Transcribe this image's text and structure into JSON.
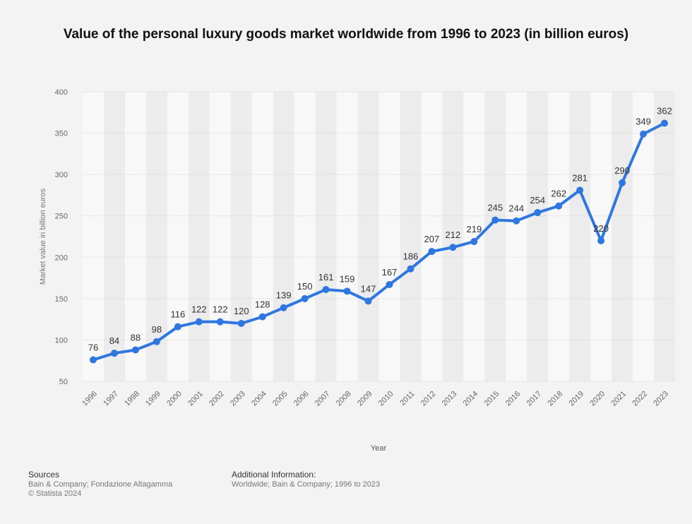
{
  "chart_data": {
    "type": "line",
    "title": "Value of the personal luxury goods market worldwide from 1996 to 2023 (in billion euros)",
    "xlabel": "Year",
    "ylabel": "Market value in billion euros",
    "categories": [
      "1996",
      "1997",
      "1998",
      "1999",
      "2000",
      "2001",
      "2002",
      "2003",
      "2004",
      "2005",
      "2006",
      "2007",
      "2008",
      "2009",
      "2010",
      "2011",
      "2012",
      "2013",
      "2014",
      "2015",
      "2016",
      "2017",
      "2018",
      "2019",
      "2020",
      "2021",
      "2022",
      "2023"
    ],
    "series": [
      {
        "values": [
          76,
          84,
          88,
          98,
          116,
          122,
          122,
          120,
          128,
          139,
          150,
          161,
          159,
          147,
          167,
          186,
          207,
          212,
          219,
          245,
          244,
          254,
          262,
          281,
          220,
          290,
          349,
          362
        ],
        "color": "#2f77e0"
      }
    ],
    "ylim": [
      50,
      400
    ],
    "yticks": [
      50,
      100,
      150,
      200,
      250,
      300,
      350,
      400
    ],
    "grid": true,
    "data_labels": true,
    "legend": "none"
  },
  "footer": {
    "sources_heading": "Sources",
    "sources_line1": "Bain & Company; Fondazione Altagamma",
    "sources_line2": "© Statista 2024",
    "additional_heading": "Additional Information:",
    "additional_text": "Worldwide; Bain & Company; 1996 to 2023"
  }
}
